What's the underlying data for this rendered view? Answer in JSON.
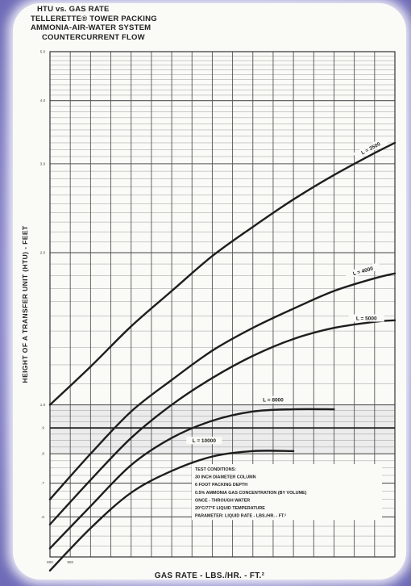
{
  "title_lines": [
    "HTU vs. GAS RATE",
    "TELLERETTE® TOWER PACKING",
    "AMMONIA-AIR-WATER SYSTEM",
    "COUNTERCURRENT FLOW"
  ],
  "chart_data": {
    "type": "line",
    "xlabel": "GAS RATE - LBS./HR. - FT.²",
    "ylabel": "HEIGHT OF A TRANSFER UNIT (HTU) - FEET",
    "xlim": [
      800,
      2500
    ],
    "ylim": [
      0.5,
      5.0
    ],
    "y_scale": "log",
    "x_ticks": [
      800,
      900,
      1000,
      1100,
      1200,
      1300,
      1400,
      1500,
      1600,
      1700,
      1800,
      1900,
      2000,
      2100,
      2200,
      2300,
      2400,
      2500
    ],
    "x_tick_labels": [
      "800",
      "900",
      "",
      "",
      "",
      "",
      "",
      "",
      "",
      "",
      "",
      "",
      "",
      "",
      "",
      "",
      "",
      ""
    ],
    "y_ticks": [
      0.5,
      0.6,
      0.7,
      0.8,
      0.9,
      1.0,
      2.0,
      3.0,
      4.0,
      5.0
    ],
    "y_tick_labels": [
      "",
      ".6",
      ".7",
      ".8",
      ".9",
      "1.0",
      "2.0",
      "3.0",
      "4.0",
      "5.0"
    ],
    "grid": true,
    "series": [
      {
        "name": "L = 2500",
        "x": [
          800,
          1000,
          1200,
          1400,
          1600,
          1800,
          2000,
          2200,
          2400,
          2500
        ],
        "y": [
          1.0,
          1.19,
          1.43,
          1.68,
          1.97,
          2.25,
          2.55,
          2.85,
          3.15,
          3.3
        ]
      },
      {
        "name": "L = 4000",
        "x": [
          800,
          1000,
          1200,
          1400,
          1600,
          1800,
          2000,
          2200,
          2400,
          2500
        ],
        "y": [
          0.65,
          0.8,
          0.97,
          1.12,
          1.28,
          1.42,
          1.55,
          1.68,
          1.78,
          1.82
        ]
      },
      {
        "name": "L = 5000",
        "x": [
          800,
          1000,
          1200,
          1400,
          1600,
          1800,
          2000,
          2200,
          2400,
          2500
        ],
        "y": [
          0.58,
          0.71,
          0.86,
          1.0,
          1.13,
          1.25,
          1.35,
          1.42,
          1.46,
          1.47
        ]
      },
      {
        "name": "L = 8000",
        "x": [
          800,
          1000,
          1200,
          1400,
          1600,
          1800,
          2000,
          2200
        ],
        "y": [
          0.52,
          0.63,
          0.76,
          0.86,
          0.93,
          0.97,
          0.98,
          0.98
        ]
      },
      {
        "name": "L = 10000",
        "x": [
          800,
          1000,
          1200,
          1400,
          1600,
          1800,
          2000
        ],
        "y": [
          0.47,
          0.57,
          0.67,
          0.74,
          0.79,
          0.81,
          0.81
        ]
      }
    ],
    "curve_labels": [
      "L = 2500",
      "L = 4000",
      "L = 5000",
      "L = 8000",
      "L = 10000"
    ],
    "annotation_lines": [
      "TEST CONDITIONS:",
      "30 INCH DIAMETER COLUMN",
      "6 FOOT PACKING DEPTH",
      "0.5% AMMONIA GAS CONCENTRATION (BY VOLUME)",
      "ONCE - THROUGH WATER",
      "20°C/77°F LIQUID TEMPERATURE",
      "PARAMETER: LIQUID RATE - LBS./HR. - FT.²"
    ]
  }
}
